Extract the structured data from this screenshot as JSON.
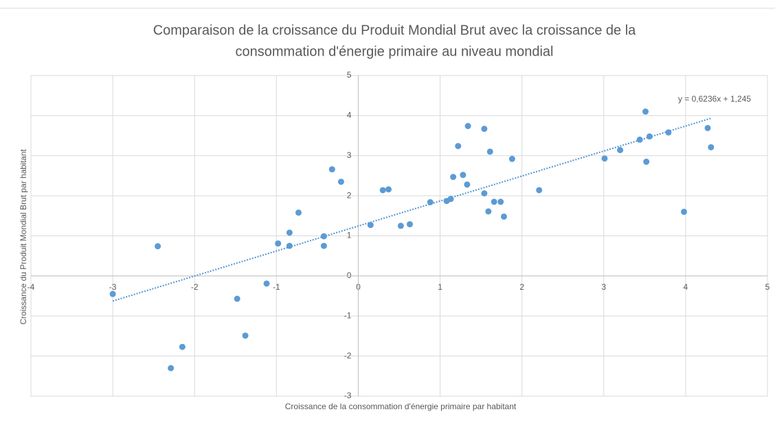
{
  "chart_data": {
    "type": "scatter",
    "title": [
      "Comparaison de la croissance du Produit Mondial Brut avec la croissance de la",
      "consommation d'énergie primaire au niveau mondial"
    ],
    "xlabel": "Croissance de la consommation d'énergie primaire par habitant",
    "ylabel": "Croissance du Produit Mondial Brut par habitant",
    "color": "#5b9bd5",
    "grid": true,
    "xlim": [
      -4,
      5
    ],
    "xticks": [
      -4,
      -3,
      -2,
      -1,
      0,
      1,
      2,
      3,
      4,
      5
    ],
    "ylim": [
      -3,
      5
    ],
    "yticks": [
      -3,
      -2,
      -1,
      0,
      1,
      2,
      3,
      4,
      5
    ],
    "trendline": {
      "label": "y = 0,6236x + 1,245",
      "slope": 0.6236,
      "intercept": 1.245
    },
    "x": [
      -3.0,
      -2.45,
      -2.29,
      -2.15,
      -1.48,
      -1.38,
      -1.12,
      -0.98,
      -0.84,
      -0.84,
      -0.73,
      -0.42,
      -0.42,
      -0.32,
      -0.21,
      0.15,
      0.3,
      0.37,
      0.52,
      0.63,
      0.88,
      1.08,
      1.13,
      1.16,
      1.22,
      1.28,
      1.33,
      1.34,
      1.54,
      1.54,
      1.59,
      1.61,
      1.66,
      1.74,
      1.78,
      1.88,
      2.21,
      3.01,
      3.2,
      3.44,
      3.51,
      3.52,
      3.56,
      3.79,
      3.98,
      4.27,
      4.31
    ],
    "values": [
      -0.45,
      0.74,
      -2.3,
      -1.77,
      -0.57,
      -1.49,
      -0.19,
      0.81,
      1.08,
      0.75,
      1.58,
      0.99,
      0.75,
      2.66,
      2.35,
      1.27,
      2.14,
      2.16,
      1.25,
      1.29,
      1.84,
      1.87,
      1.92,
      2.47,
      3.24,
      2.52,
      2.28,
      3.74,
      2.06,
      3.67,
      1.61,
      3.1,
      1.85,
      1.85,
      1.48,
      2.92,
      2.14,
      2.93,
      3.14,
      3.4,
      4.1,
      2.85,
      3.48,
      3.58,
      1.6,
      3.69,
      3.21
    ]
  }
}
